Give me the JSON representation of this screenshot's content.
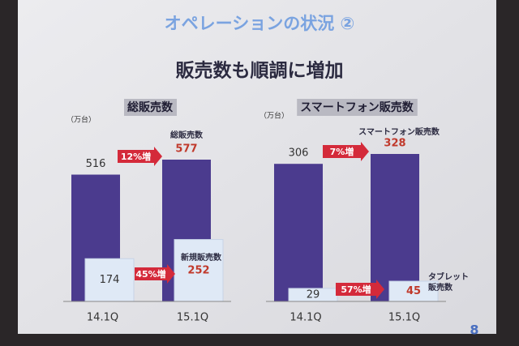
{
  "slide": {
    "title": "オペレーションの状況 ②",
    "subtitle": "販売数も順調に増加",
    "page_number": "8"
  },
  "chart_data": [
    {
      "type": "bar",
      "title": "総販売数",
      "unit": "（万台）",
      "categories": [
        "14.1Q",
        "15.1Q"
      ],
      "series": [
        {
          "name": "総販売数",
          "color": "#4b3b8e",
          "values": [
            516,
            577
          ]
        },
        {
          "name": "新規販売数",
          "color": "#dfe9f6",
          "values": [
            174,
            252
          ]
        }
      ],
      "annotations": [
        "12%増",
        "45%増"
      ]
    },
    {
      "type": "bar",
      "title": "スマートフォン販売数",
      "unit": "（万台）",
      "categories": [
        "14.1Q",
        "15.1Q"
      ],
      "series": [
        {
          "name": "スマートフォン販売数",
          "color": "#4b3b8e",
          "values": [
            306,
            328
          ]
        },
        {
          "name": "タブレット販売数",
          "color": "#dfe9f6",
          "values": [
            29,
            45
          ]
        }
      ],
      "annotations": [
        "7%増",
        "57%増"
      ]
    }
  ]
}
